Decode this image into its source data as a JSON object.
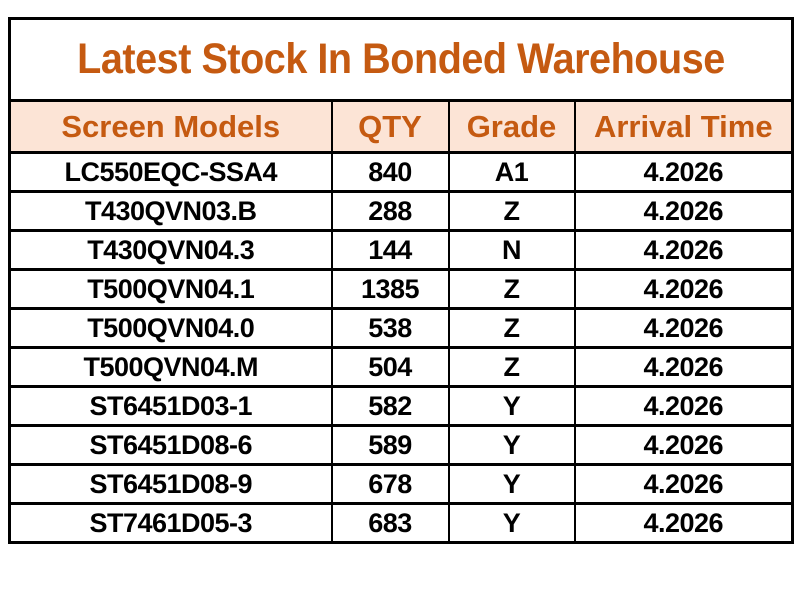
{
  "table": {
    "title": "Latest Stock In Bonded Warehouse",
    "columns": [
      "Screen Models",
      "QTY",
      "Grade",
      "Arrival Time"
    ],
    "rows": [
      {
        "model": "LC550EQC-SSA4",
        "qty": "840",
        "grade": "A1",
        "arrival": "4.2026"
      },
      {
        "model": "T430QVN03.B",
        "qty": "288",
        "grade": "Z",
        "arrival": "4.2026"
      },
      {
        "model": "T430QVN04.3",
        "qty": "144",
        "grade": "N",
        "arrival": "4.2026"
      },
      {
        "model": "T500QVN04.1",
        "qty": "1385",
        "grade": "Z",
        "arrival": "4.2026"
      },
      {
        "model": "T500QVN04.0",
        "qty": "538",
        "grade": "Z",
        "arrival": "4.2026"
      },
      {
        "model": "T500QVN04.M",
        "qty": "504",
        "grade": "Z",
        "arrival": "4.2026"
      },
      {
        "model": "ST6451D03-1",
        "qty": "582",
        "grade": "Y",
        "arrival": "4.2026"
      },
      {
        "model": "ST6451D08-6",
        "qty": "589",
        "grade": "Y",
        "arrival": "4.2026"
      },
      {
        "model": "ST6451D08-9",
        "qty": "678",
        "grade": "Y",
        "arrival": "4.2026"
      },
      {
        "model": "ST7461D05-3",
        "qty": "683",
        "grade": "Y",
        "arrival": "4.2026"
      }
    ],
    "colors": {
      "accent_text": "#C55A11",
      "header_bg": "#FCE4D6",
      "border_color": "#000000",
      "data_text": "#000000",
      "page_bg": "#FFFFFF"
    }
  }
}
